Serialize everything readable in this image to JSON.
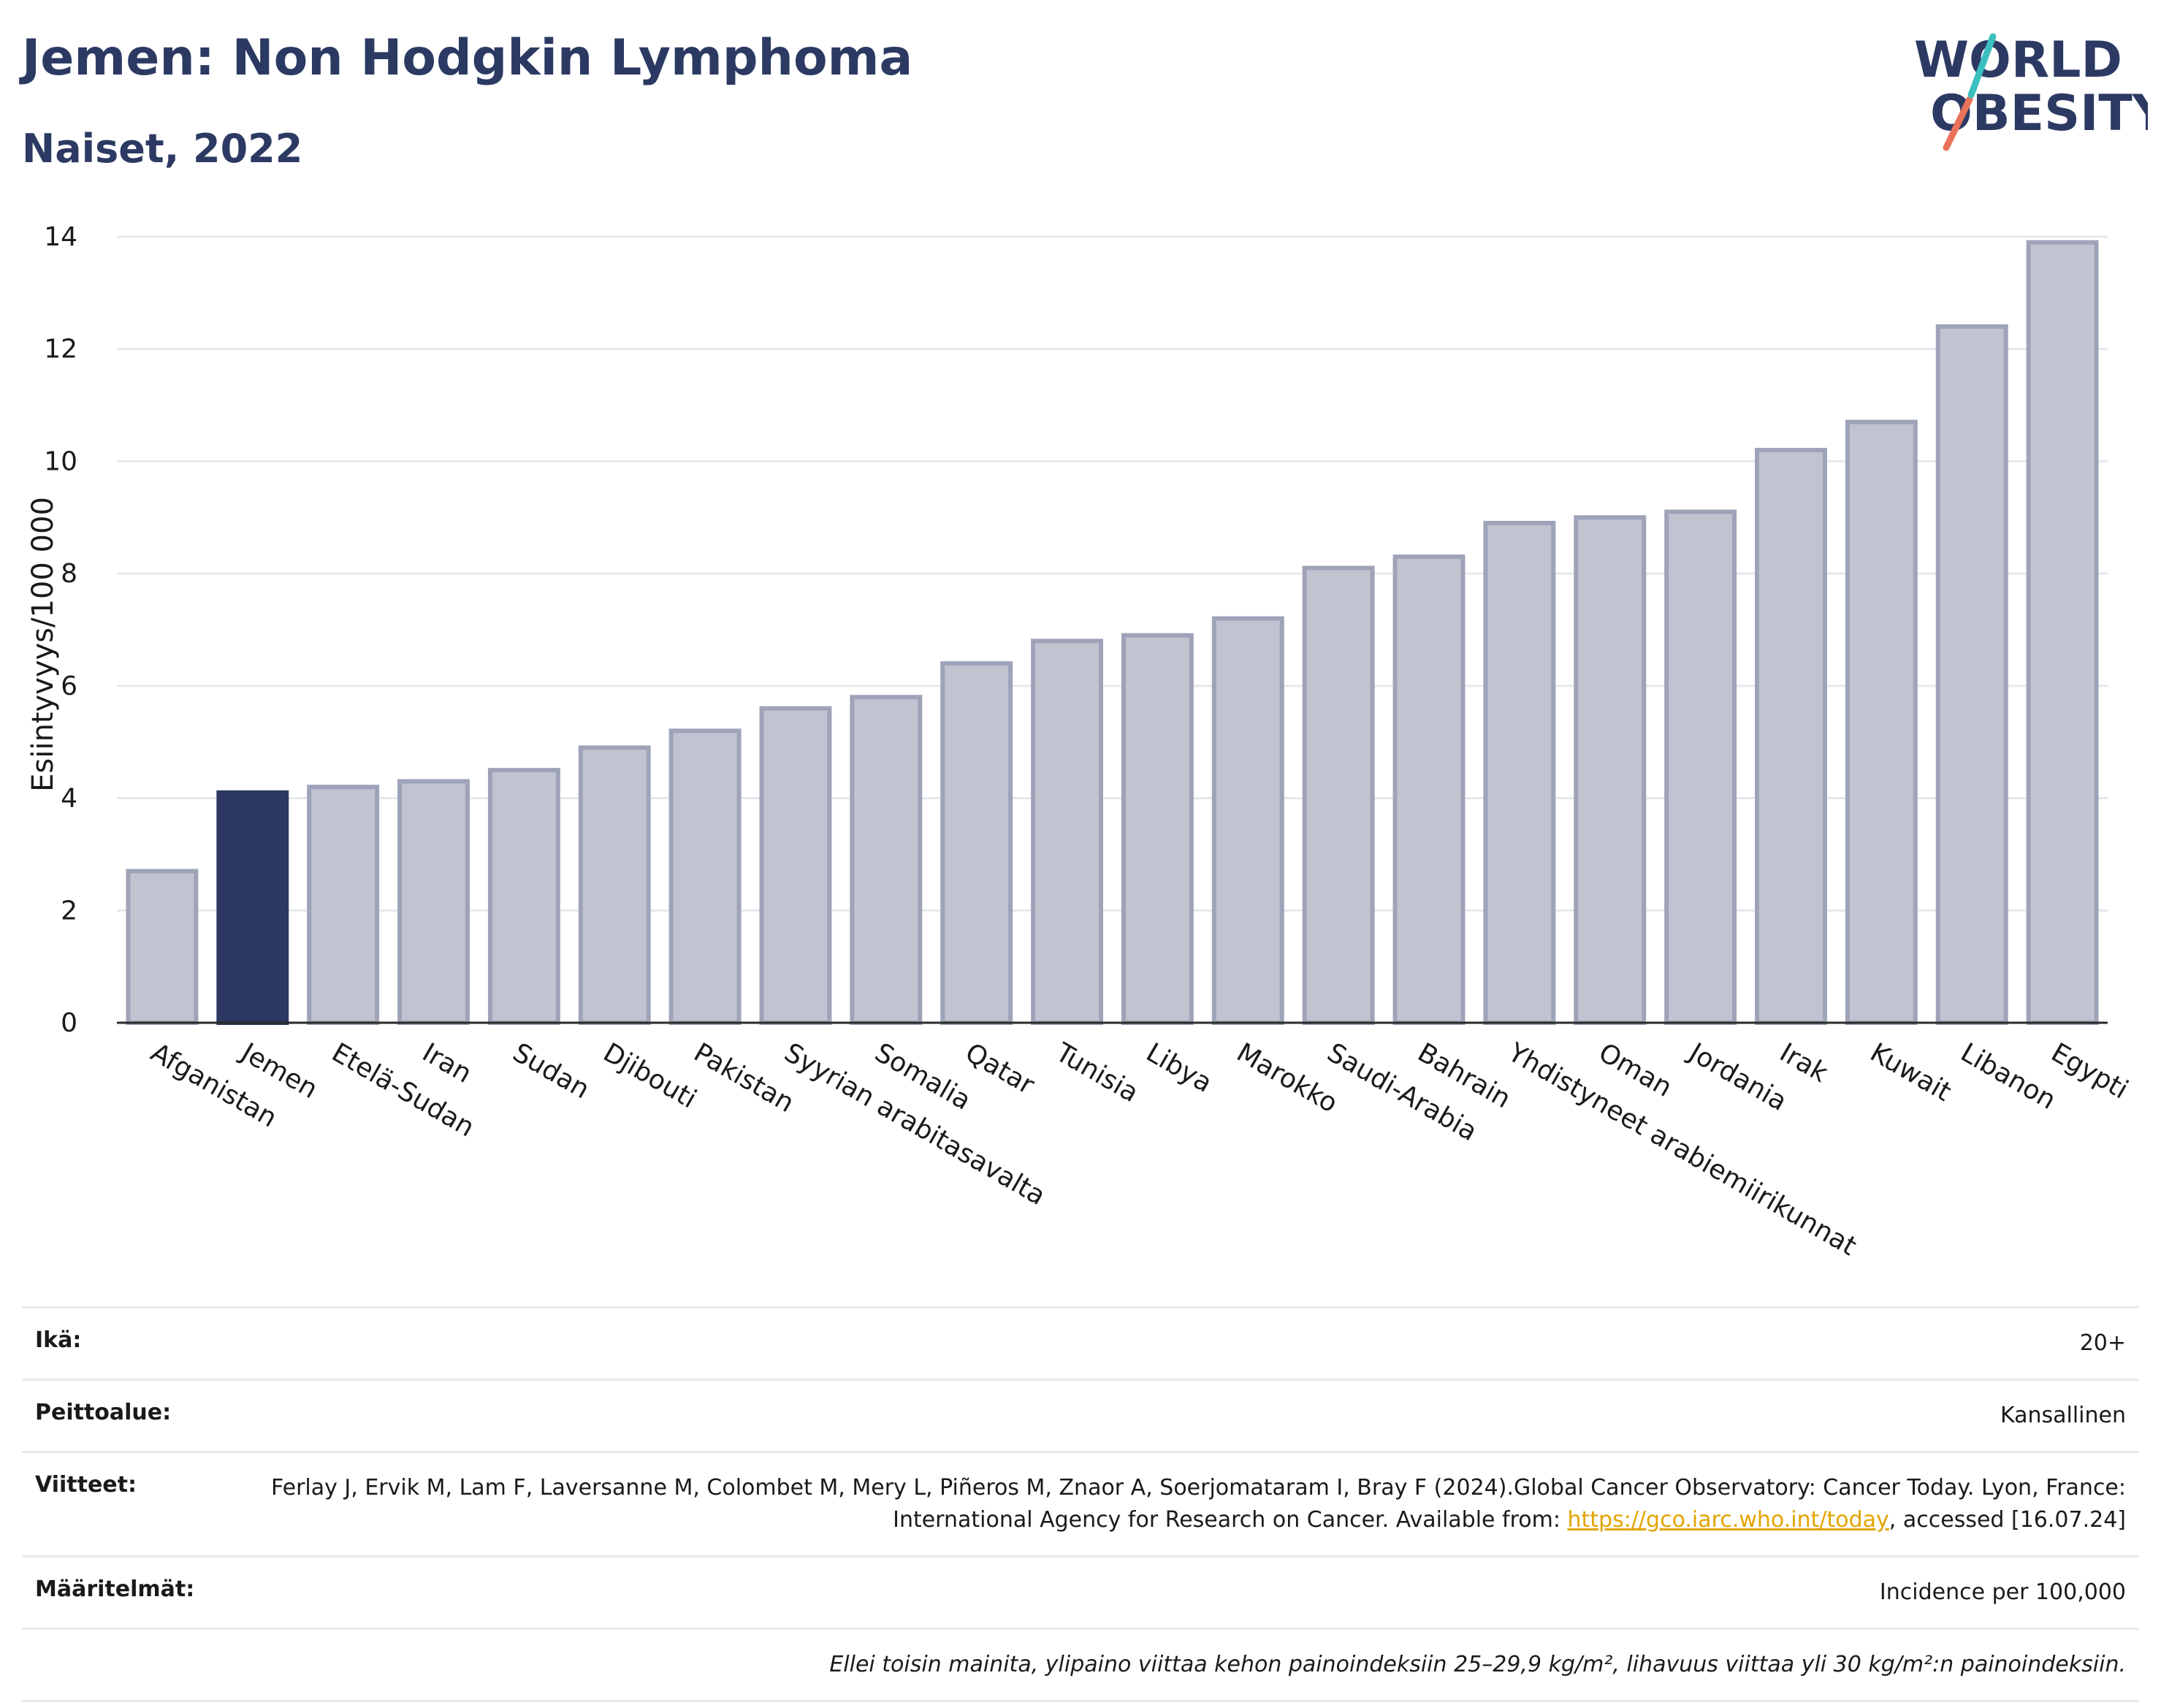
{
  "header": {
    "title": "Jemen: Non Hodgkin Lymphoma",
    "subtitle": "Naiset, 2022"
  },
  "logo": {
    "line1": "WORLD",
    "line2": "OBESITY"
  },
  "colors": {
    "highlight": "#2c3862",
    "bar_fill": "#c0c3d0",
    "bar_stroke": "#9ea3b8",
    "title": "#2c3a63"
  },
  "chart_data": {
    "type": "bar",
    "title": "Jemen: Non Hodgkin Lymphoma",
    "subtitle": "Naiset, 2022",
    "ylabel": "Esiintyvyys/100 000",
    "xlabel": "",
    "ylim": [
      0,
      14.5
    ],
    "yticks": [
      0,
      2,
      4,
      6,
      8,
      10,
      12,
      14
    ],
    "grid": true,
    "highlight": "Jemen",
    "categories": [
      "Afganistan",
      "Jemen",
      "Etelä-Sudan",
      "Iran",
      "Sudan",
      "Djibouti",
      "Pakistan",
      "Syyrian arabitasavalta",
      "Somalia",
      "Qatar",
      "Tunisia",
      "Libya",
      "Marokko",
      "Saudi-Arabia",
      "Bahrain",
      "Yhdistyneet arabiemiirikunnat",
      "Oman",
      "Jordania",
      "Irak",
      "Kuwait",
      "Libanon",
      "Egypti"
    ],
    "values": [
      2.7,
      4.1,
      4.2,
      4.3,
      4.5,
      4.9,
      5.2,
      5.6,
      5.8,
      6.4,
      6.8,
      6.9,
      7.2,
      8.1,
      8.3,
      8.9,
      9.0,
      9.1,
      10.2,
      10.7,
      12.4,
      13.9
    ]
  },
  "meta": {
    "age_label": "Ikä:",
    "age_value": "20+",
    "coverage_label": "Peittoalue:",
    "coverage_value": "Kansallinen",
    "refs_label": "Viitteet:",
    "refs_text_1": "Ferlay J, Ervik M, Lam F, Laversanne M, Colombet M, Mery L, Piñeros M, Znaor A, Soerjomataram I, Bray F (2024).Global Cancer Observatory: Cancer Today. Lyon, France: International Agency for Research on Cancer. Available from: ",
    "refs_link": "https://gco.iarc.who.int/today",
    "refs_text_2": ", accessed [16.07.24]",
    "defs_label": "Määritelmät:",
    "defs_value": "Incidence per 100,000",
    "note": "Ellei toisin mainita, ylipaino viittaa kehon painoindeksiin 25–29,9 kg/m², lihavuus viittaa yli 30 kg/m²:n painoindeksiin."
  }
}
